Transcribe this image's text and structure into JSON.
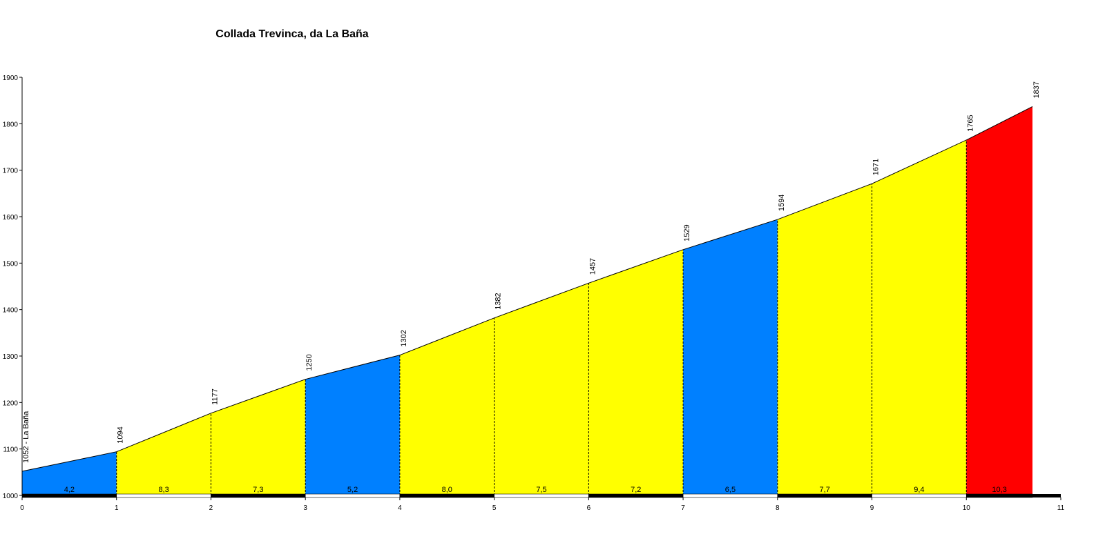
{
  "chart_data": {
    "type": "area",
    "title": "Collada Trevinca, da La Baña",
    "xlabel": "",
    "ylabel": "",
    "xlim": [
      0,
      11
    ],
    "ylim": [
      1000,
      1900
    ],
    "x_ticks": [
      "0",
      "1",
      "2",
      "3",
      "4",
      "5",
      "6",
      "7",
      "8",
      "9",
      "10",
      "11"
    ],
    "y_ticks": [
      "1000",
      "1100",
      "1200",
      "1300",
      "1400",
      "1500",
      "1600",
      "1700",
      "1800",
      "1900"
    ],
    "start_label": "1052 - La Baña",
    "profile": {
      "x": [
        0,
        1,
        2,
        3,
        4,
        5,
        6,
        7,
        8,
        9,
        10,
        10.7
      ],
      "elevation": [
        1052,
        1094,
        1177,
        1250,
        1302,
        1382,
        1457,
        1529,
        1594,
        1671,
        1765,
        1837
      ],
      "elevation_labels": [
        "1052 - La Baña",
        "1094",
        "1177",
        "1250",
        "1302",
        "1382",
        "1457",
        "1529",
        "1594",
        "1671",
        "1765",
        "1837"
      ]
    },
    "segments": [
      {
        "gradient": "4,2",
        "color": "#0080ff"
      },
      {
        "gradient": "8,3",
        "color": "#ffff00"
      },
      {
        "gradient": "7,3",
        "color": "#ffff00"
      },
      {
        "gradient": "5,2",
        "color": "#0080ff"
      },
      {
        "gradient": "8,0",
        "color": "#ffff00"
      },
      {
        "gradient": "7,5",
        "color": "#ffff00"
      },
      {
        "gradient": "7,2",
        "color": "#ffff00"
      },
      {
        "gradient": "6,5",
        "color": "#0080ff"
      },
      {
        "gradient": "7,7",
        "color": "#ffff00"
      },
      {
        "gradient": "9,4",
        "color": "#ffff00"
      },
      {
        "gradient": "10,3",
        "color": "#ff0000"
      }
    ],
    "grid": false,
    "legend": "none"
  }
}
